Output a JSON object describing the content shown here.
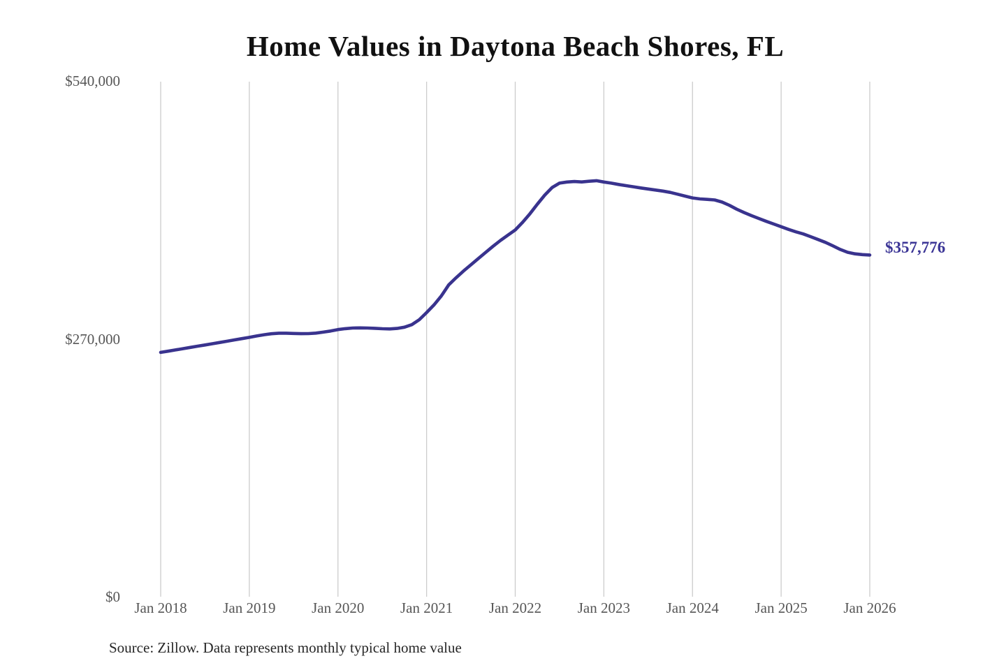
{
  "page": {
    "title": "Home Values in Daytona Beach Shores, FL",
    "source_note": "Source: Zillow. Data represents monthly typical home value"
  },
  "colors": {
    "line": "#39338e",
    "end_label": "#3b3596",
    "gridline": "#cccccc",
    "tick_text": "#565656",
    "title_text": "#111111",
    "source_text": "#262626",
    "background": "#ffffff"
  },
  "chart_data": {
    "type": "line",
    "title": "Home Values in Daytona Beach Shores, FL",
    "series_name": "Monthly typical home value",
    "xlabel": "",
    "ylabel": "",
    "ylim": [
      0,
      540000
    ],
    "grid": "vertical-only",
    "legend": "none",
    "x_tick_labels": [
      "Jan 2018",
      "Jan 2019",
      "Jan 2020",
      "Jan 2021",
      "Jan 2022",
      "Jan 2023",
      "Jan 2024",
      "Jan 2025",
      "Jan 2026"
    ],
    "y_ticks": [
      {
        "label": "$540,000",
        "value": 540000
      },
      {
        "label": "$270,000",
        "value": 270000
      },
      {
        "label": "$0",
        "value": 0
      }
    ],
    "end_label": {
      "text": "$357,776",
      "value": 357776
    },
    "x_frequency": "monthly",
    "x_range": [
      "Jan 2018",
      "Jan 2026"
    ],
    "values": [
      255800,
      257100,
      258400,
      259700,
      261000,
      262300,
      263600,
      264900,
      266200,
      267500,
      268900,
      270200,
      271500,
      273000,
      274300,
      275300,
      275900,
      275900,
      275600,
      275400,
      275500,
      276000,
      277000,
      278200,
      279700,
      280700,
      281300,
      281500,
      281300,
      281000,
      280600,
      280400,
      280900,
      282200,
      284800,
      290000,
      297500,
      305500,
      315000,
      326500,
      334000,
      341000,
      347500,
      354000,
      360500,
      367000,
      373000,
      378500,
      384000,
      392000,
      401000,
      411000,
      420500,
      428500,
      433000,
      434200,
      434700,
      434300,
      435000,
      435600,
      434200,
      433000,
      431600,
      430400,
      429200,
      428000,
      426900,
      425800,
      424700,
      423300,
      421400,
      419400,
      417500,
      416500,
      416000,
      415400,
      413200,
      409800,
      405700,
      402200,
      399000,
      396000,
      393000,
      390200,
      387400,
      384600,
      382000,
      379800,
      377000,
      374000,
      371000,
      367400,
      363600,
      360600,
      359000,
      358200,
      357776
    ]
  }
}
